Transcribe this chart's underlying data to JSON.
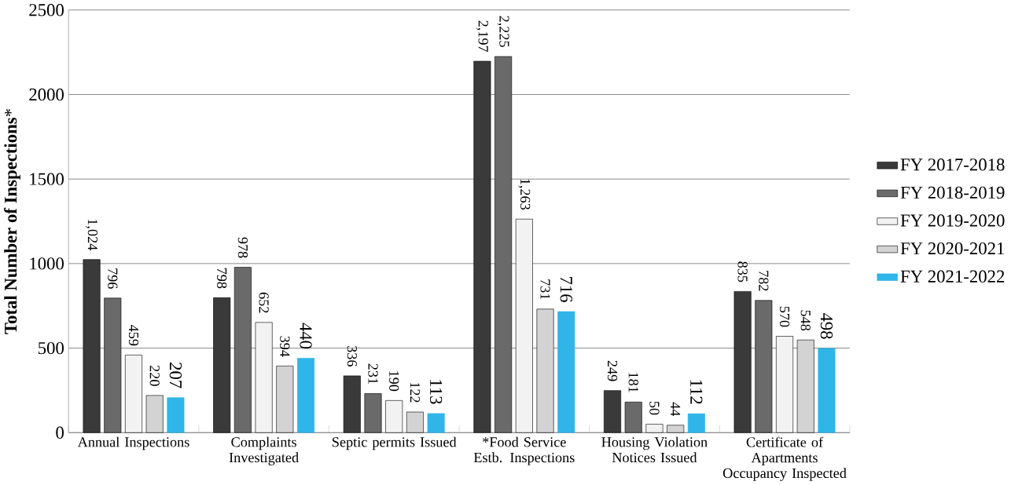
{
  "chart_data": {
    "type": "bar",
    "ylabel": "**Total Number of Inspections***",
    "categories": [
      "Annual Inspections",
      "Complaints Investigated",
      "Septic permits Issued",
      "*Food Service Estb. Inspections",
      "Housing Violation Notices Issued",
      "Certificate of Apartments Occupancy Inspected"
    ],
    "series": [
      {
        "name": "FY 2017-2018",
        "color": "#3a3a3a",
        "values": [
          1024,
          798,
          336,
          2197,
          249,
          835
        ],
        "value_labels": [
          "1,024",
          "798",
          "336",
          "2,197",
          "249",
          "835"
        ]
      },
      {
        "name": "FY 2018-2019",
        "color": "#6a6a6a",
        "values": [
          796,
          978,
          231,
          2225,
          181,
          782
        ],
        "value_labels": [
          "796",
          "978",
          "231",
          "2,225",
          "181",
          "782"
        ]
      },
      {
        "name": "FY 2019-2020",
        "color": "#f2f2f2",
        "values": [
          459,
          652,
          190,
          1263,
          50,
          570
        ],
        "value_labels": [
          "459",
          "652",
          "190",
          "1,263",
          "50",
          "570"
        ]
      },
      {
        "name": "FY 2020-2021",
        "color": "#d3d3d3",
        "values": [
          220,
          394,
          122,
          731,
          44,
          548
        ],
        "value_labels": [
          "220",
          "394",
          "122",
          "731",
          "44",
          "548"
        ]
      },
      {
        "name": "FY 2021-2022",
        "color": "#2fb5e8",
        "values": [
          207,
          440,
          113,
          716,
          112,
          498
        ],
        "value_labels": [
          "207",
          "440",
          "113",
          "716",
          "112",
          "498"
        ]
      }
    ],
    "ylim": [
      0,
      2500
    ],
    "yticks": [
      0,
      500,
      1000,
      1500,
      2000,
      2500
    ],
    "grid": "y",
    "legend": "right"
  }
}
